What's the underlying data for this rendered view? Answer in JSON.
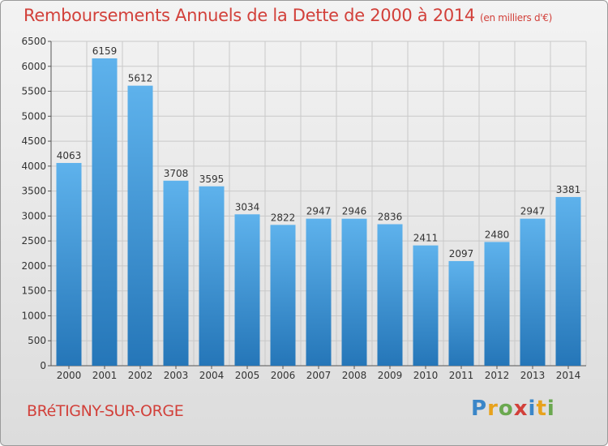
{
  "title": "Remboursements Annuels de la Dette de 2000 à 2014",
  "subtitle": "(en milliers d'€)",
  "city": "BRéTIGNY-SUR-ORGE",
  "brand": {
    "letters": [
      "P",
      "r",
      "o",
      "x",
      "i",
      "t",
      "i"
    ],
    "colors": [
      "#3a86c8",
      "#e8a21c",
      "#6aa84f",
      "#d2403a",
      "#3a86c8",
      "#e8a21c",
      "#6aa84f"
    ]
  },
  "colors": {
    "bar_top": "#5eb2ec",
    "bar_bottom": "#2576b8",
    "accent": "#d2403a"
  },
  "chart_data": {
    "type": "bar",
    "title": "Remboursements Annuels de la Dette de 2000 à 2014",
    "xlabel": "",
    "ylabel": "",
    "ylim": [
      0,
      6500
    ],
    "yticks": [
      0,
      500,
      1000,
      1500,
      2000,
      2500,
      3000,
      3500,
      4000,
      4500,
      5000,
      5500,
      6000,
      6500
    ],
    "grid": true,
    "categories": [
      "2000",
      "2001",
      "2002",
      "2003",
      "2004",
      "2005",
      "2006",
      "2007",
      "2008",
      "2009",
      "2010",
      "2011",
      "2012",
      "2013",
      "2014"
    ],
    "values": [
      4063,
      6159,
      5612,
      3708,
      3595,
      3034,
      2822,
      2947,
      2946,
      2836,
      2411,
      2097,
      2480,
      2947,
      3381
    ]
  }
}
